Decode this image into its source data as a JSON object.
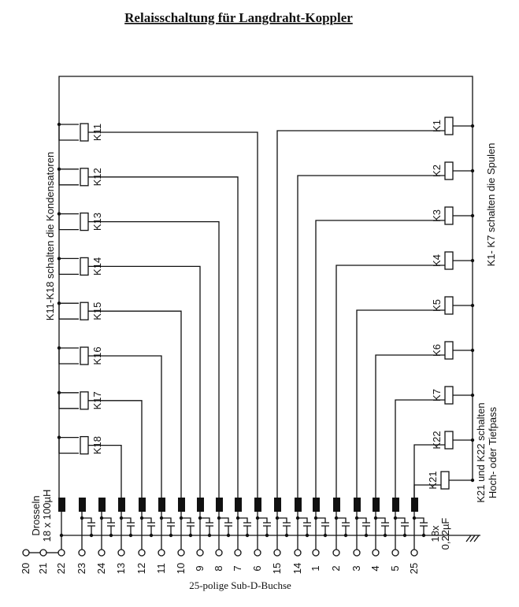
{
  "title": "Relaisschaltung für Langdraht-Koppler",
  "left_relays": [
    "K11",
    "K12",
    "K13",
    "K14",
    "K15",
    "K16",
    "K17",
    "K18"
  ],
  "right_relays": [
    "K1",
    "K2",
    "K3",
    "K4",
    "K5",
    "K6",
    "K7",
    "K22",
    "K21"
  ],
  "left_note": "K11-K18 schalten die Kondensatoren",
  "right_note": "K1- K7 schalten die Spulen",
  "filter_note": [
    "K21 und K22 schalten",
    "Hoch- oder Tiefpass"
  ],
  "choke_note": [
    "Drosseln",
    "18 x 100µH"
  ],
  "cap_note": [
    "18x",
    "0,22µF"
  ],
  "pins": [
    "20",
    "21",
    "22",
    "23",
    "24",
    "13",
    "12",
    "11",
    "10",
    "9",
    "8",
    "7",
    "6",
    "15",
    "14",
    "1",
    "2",
    "3",
    "4",
    "5",
    "25"
  ],
  "caption": "25-polige Sub-D-Buchse"
}
